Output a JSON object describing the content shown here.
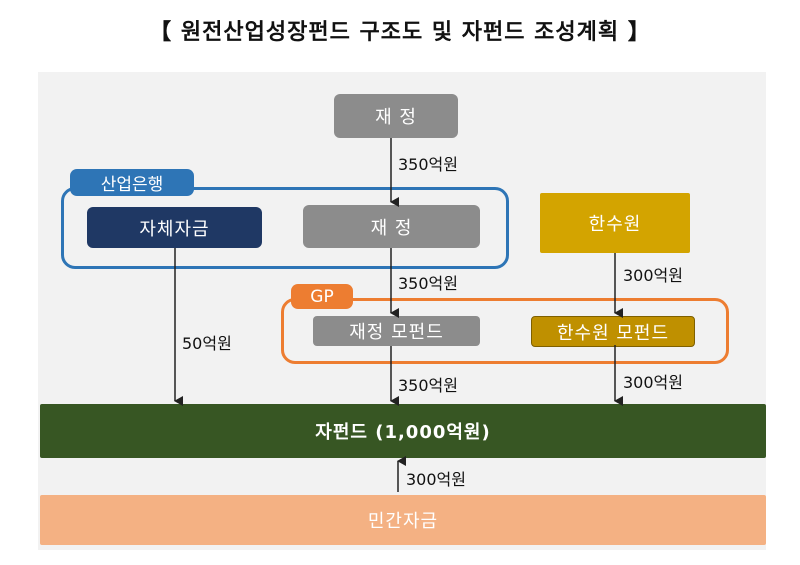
{
  "title": "【 원전산업성장펀드 구조도 및 자펀드 조성계획 】",
  "nodes": {
    "finance_top": "재 정",
    "bank_group_tag": "산업은행",
    "own_funds": "자체자금",
    "finance_bank": "재 정",
    "khnp": "한수원",
    "gp_tag": "GP",
    "finance_mother_fund": "재정 모펀드",
    "khnp_mother_fund": "한수원 모펀드",
    "sub_fund": "자펀드 (1,000억원)",
    "private_funds": "민간자금"
  },
  "flows": {
    "finance_to_bank": "350억원",
    "khnp_to_gp": "300억원",
    "finance_to_gp": "350억원",
    "own_to_subfund": "50억원",
    "finance_mother_to_subfund": "350억원",
    "khnp_mother_to_subfund": "300억원",
    "private_to_subfund": "300억원"
  },
  "colors": {
    "gray": "#8c8c8c",
    "navy": "#1f3864",
    "gold": "#d3a400",
    "blue_border": "#2e75b6",
    "orange_border": "#ed7d31",
    "green": "#375623",
    "peach": "#f4b183"
  }
}
